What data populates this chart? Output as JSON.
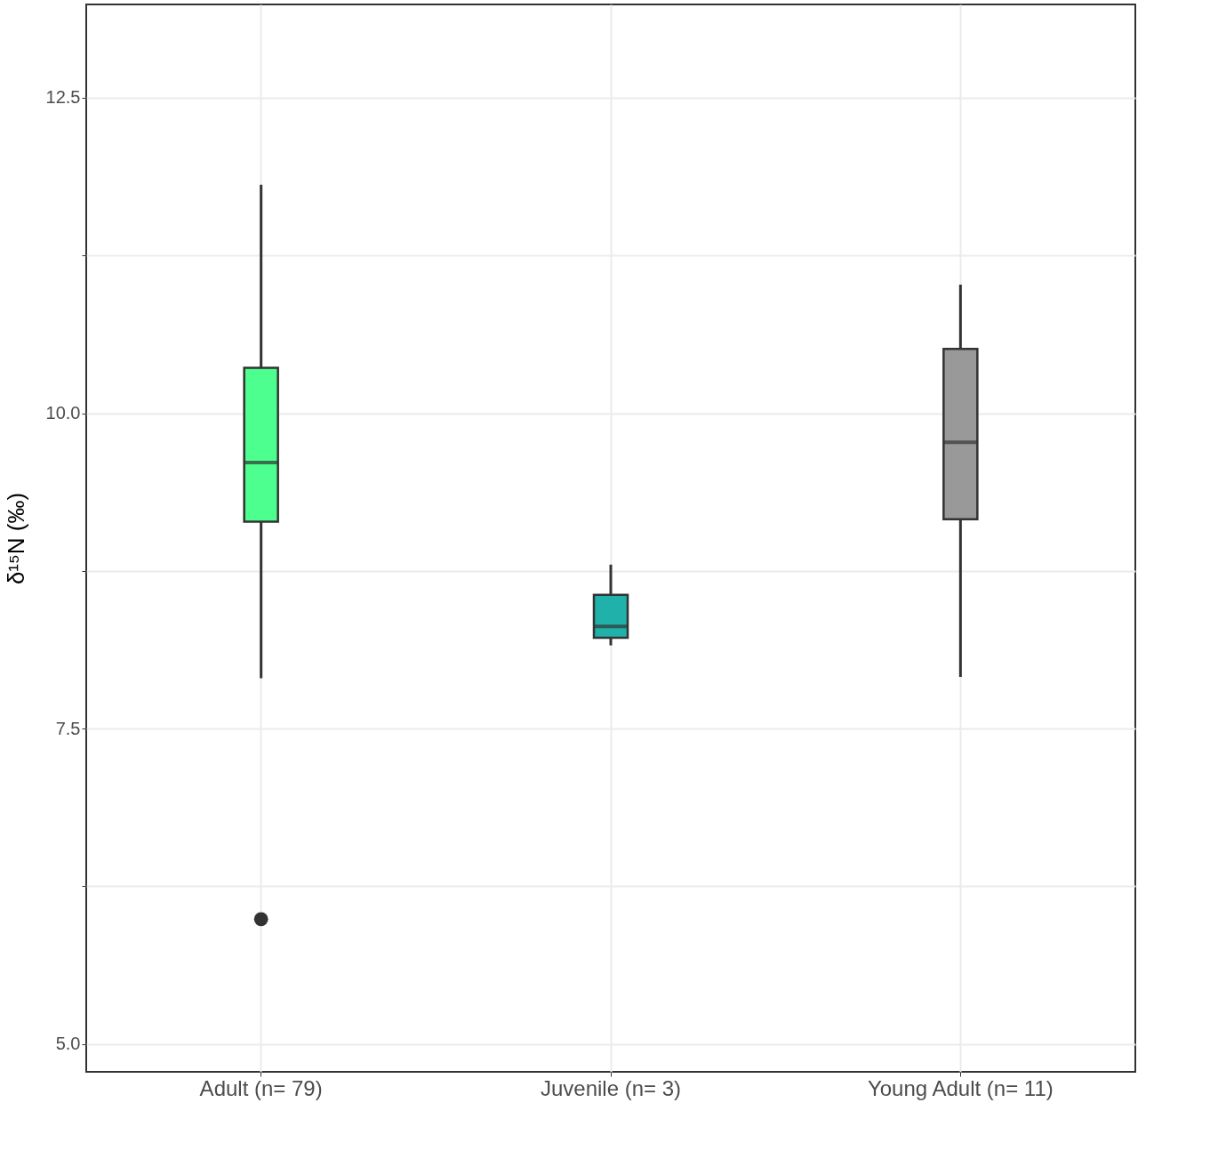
{
  "chart_data": {
    "type": "box",
    "ylabel": "δ¹⁵N (‰)",
    "categories": [
      "Adult (n= 79)",
      "Juvenile (n= 3)",
      "Young Adult (n= 11)"
    ],
    "colors": [
      "#4dff8f",
      "#20b2aa",
      "#999999"
    ],
    "boxes": [
      {
        "low": 7.9,
        "q1": 9.14,
        "median": 9.61,
        "q3": 10.36,
        "high": 11.81,
        "outliers": [
          5.99
        ]
      },
      {
        "low": 8.16,
        "q1": 8.22,
        "median": 8.31,
        "q3": 8.56,
        "high": 8.8
      },
      {
        "low": 7.91,
        "q1": 9.16,
        "median": 9.77,
        "q3": 10.51,
        "high": 11.02
      }
    ],
    "ylim": [
      4.78,
      13.24
    ],
    "yticks": [
      {
        "value": 5,
        "label": "5.0"
      },
      {
        "value": 6.25,
        "label": null
      },
      7.5,
      {
        "value": 8.75,
        "label": null
      },
      {
        "value": 10,
        "label": "10.0"
      },
      {
        "value": 11.25,
        "label": null
      },
      12.5
    ],
    "grid": true
  }
}
